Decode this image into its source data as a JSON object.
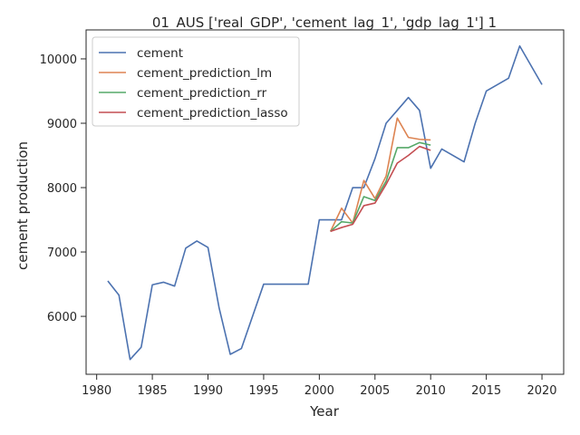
{
  "chart_data": {
    "type": "line",
    "title": "01_AUS ['real_GDP', 'cement_lag_1', 'gdp_lag_1'] 1",
    "xlabel": "Year",
    "ylabel": "cement production",
    "xlim": [
      1979.05,
      2021.95
    ],
    "ylim": [
      5100,
      10450
    ],
    "x_ticks": [
      1980,
      1985,
      1990,
      1995,
      2000,
      2005,
      2010,
      2015,
      2020
    ],
    "y_ticks": [
      6000,
      7000,
      8000,
      9000,
      10000
    ],
    "legend_position": "top-left",
    "series": [
      {
        "name": "cement",
        "color": "#4c72b0",
        "x": [
          1981,
          1982,
          1983,
          1984,
          1985,
          1986,
          1987,
          1988,
          1989,
          1990,
          1991,
          1992,
          1993,
          1995,
          1996,
          1997,
          1998,
          1999,
          2000,
          2001,
          2002,
          2003,
          2004,
          2005,
          2006,
          2007,
          2008,
          2009,
          2010,
          2011,
          2013,
          2014,
          2015,
          2017,
          2018,
          2020
        ],
        "y": [
          6550,
          6330,
          5330,
          5520,
          6490,
          6530,
          6470,
          7060,
          7170,
          7070,
          6130,
          5410,
          5500,
          6500,
          6500,
          6500,
          6500,
          6500,
          7500,
          7500,
          7500,
          8000,
          8000,
          8450,
          9000,
          9200,
          9400,
          9200,
          8300,
          8600,
          8400,
          9000,
          9500,
          9700,
          10200,
          9600
        ]
      },
      {
        "name": "cement_prediction_lm",
        "color": "#dd8452",
        "x": [
          2001,
          2002,
          2003,
          2004,
          2005,
          2006,
          2007,
          2008,
          2009,
          2010
        ],
        "y": [
          7320,
          7680,
          7450,
          8110,
          7830,
          8180,
          9080,
          8780,
          8750,
          8740
        ]
      },
      {
        "name": "cement_prediction_rr",
        "color": "#55a868",
        "x": [
          2001,
          2002,
          2003,
          2004,
          2005,
          2006,
          2007,
          2008,
          2009,
          2010
        ],
        "y": [
          7320,
          7470,
          7450,
          7860,
          7800,
          8100,
          8620,
          8620,
          8700,
          8660
        ]
      },
      {
        "name": "cement_prediction_lasso",
        "color": "#c44e52",
        "x": [
          2001,
          2002,
          2003,
          2004,
          2005,
          2006,
          2007,
          2008,
          2009,
          2010
        ],
        "y": [
          7320,
          7380,
          7430,
          7720,
          7760,
          8050,
          8380,
          8500,
          8640,
          8580
        ]
      }
    ]
  }
}
